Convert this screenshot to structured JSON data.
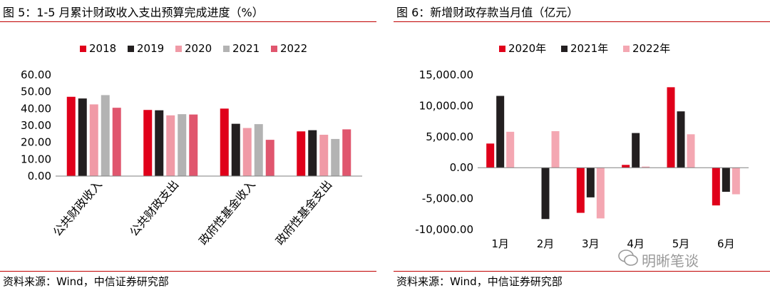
{
  "left": {
    "title": "图 5：1-5 月累计财政收入支出预算完成进度（%）",
    "source": "资料来源：Wind，中信证券研究部"
  },
  "right": {
    "title": "图 6：新增财政存款当月值（亿元）",
    "source": "资料来源：Wind，中信证券研究部"
  },
  "watermark": "明晰笔谈",
  "colors": {
    "rule": "#c00000",
    "axis": "#808080"
  },
  "chart_data": [
    {
      "type": "bar",
      "title": "1-5 月累计财政收入支出预算完成进度（%）",
      "categories": [
        "公共财政收入",
        "公共财政支出",
        "政府性基金收入",
        "政府性基金支出"
      ],
      "series": [
        {
          "name": "2018",
          "color": "#e0001a",
          "values": [
            47.0,
            39.2,
            40.0,
            26.5
          ]
        },
        {
          "name": "2019",
          "color": "#231f20",
          "values": [
            46.0,
            39.0,
            31.0,
            27.2
          ]
        },
        {
          "name": "2020",
          "color": "#f09aa6",
          "values": [
            42.5,
            36.0,
            28.5,
            24.5
          ]
        },
        {
          "name": "2021",
          "color": "#b3b3b3",
          "values": [
            48.0,
            36.7,
            30.8,
            22.0
          ]
        },
        {
          "name": "2022",
          "color": "#e0566e",
          "values": [
            40.5,
            36.5,
            21.5,
            27.7
          ]
        }
      ],
      "yticks": [
        "60.00",
        "50.00",
        "40.00",
        "30.00",
        "20.00",
        "10.00",
        "0.00"
      ],
      "ylim": [
        0,
        60
      ],
      "legend": "top"
    },
    {
      "type": "bar",
      "title": "新增财政存款当月值（亿元）",
      "categories": [
        "1月",
        "2月",
        "3月",
        "4月",
        "5月",
        "6月"
      ],
      "series": [
        {
          "name": "2020年",
          "color": "#e0001a",
          "values": [
            3900,
            0,
            -7300,
            450,
            13000,
            -6100
          ]
        },
        {
          "name": "2021年",
          "color": "#231f20",
          "values": [
            11600,
            -8300,
            -4800,
            5600,
            9100,
            -3900
          ]
        },
        {
          "name": "2022年",
          "color": "#f4a7b2",
          "values": [
            5800,
            5900,
            -8200,
            180,
            5400,
            -4300
          ]
        }
      ],
      "yticks": [
        "15,000.00",
        "10,000.00",
        "5,000.00",
        "0.00",
        "-5,000.00",
        "-10,000.00"
      ],
      "ylim": [
        -10000,
        15000
      ],
      "legend": "top"
    }
  ]
}
